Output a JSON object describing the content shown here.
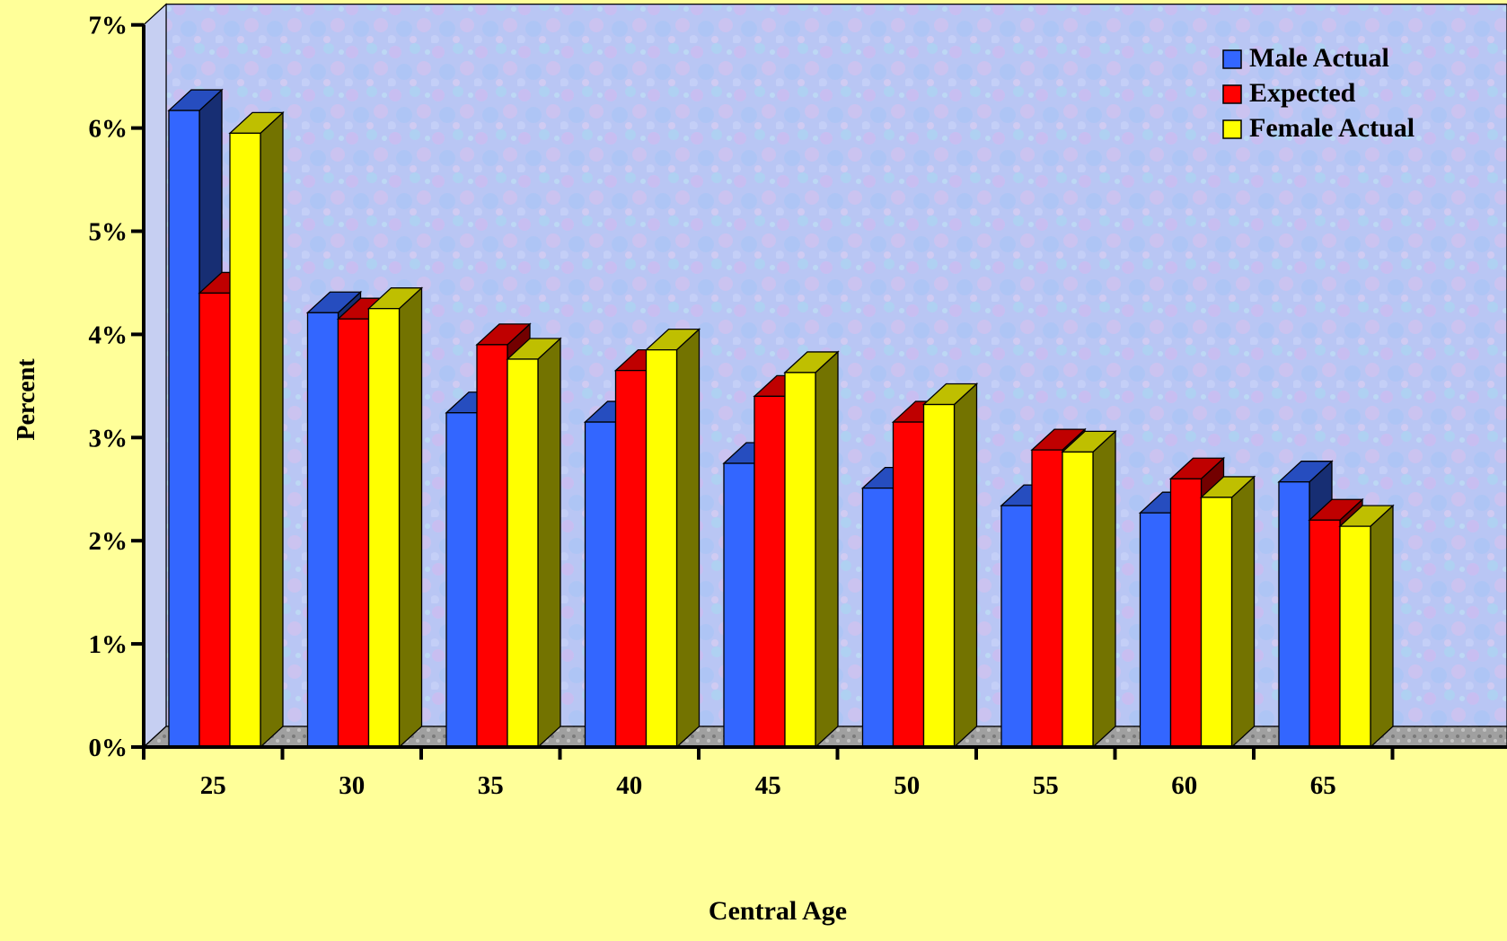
{
  "chart_data": {
    "type": "bar",
    "title": "",
    "xlabel": "Central Age",
    "ylabel": "Percent",
    "categories": [
      "25",
      "30",
      "35",
      "40",
      "45",
      "50",
      "55",
      "60",
      "65"
    ],
    "ylim": [
      0,
      7
    ],
    "y_ticks": [
      "0%",
      "1%",
      "2%",
      "3%",
      "4%",
      "5%",
      "6%",
      "7%"
    ],
    "legend_position": "top-right",
    "grid": false,
    "series": [
      {
        "name": "Male Actual",
        "color": "#3366ff",
        "values": [
          6.17,
          4.21,
          3.24,
          3.15,
          2.75,
          2.51,
          2.34,
          2.27,
          2.57
        ]
      },
      {
        "name": "Expected",
        "color": "#ff0000",
        "values": [
          4.4,
          4.15,
          3.9,
          3.65,
          3.4,
          3.15,
          2.88,
          2.6,
          2.2
        ]
      },
      {
        "name": "Female Actual",
        "color": "#ffff00",
        "values": [
          5.95,
          4.25,
          3.76,
          3.85,
          3.63,
          3.32,
          2.86,
          2.42,
          2.14
        ]
      }
    ]
  }
}
